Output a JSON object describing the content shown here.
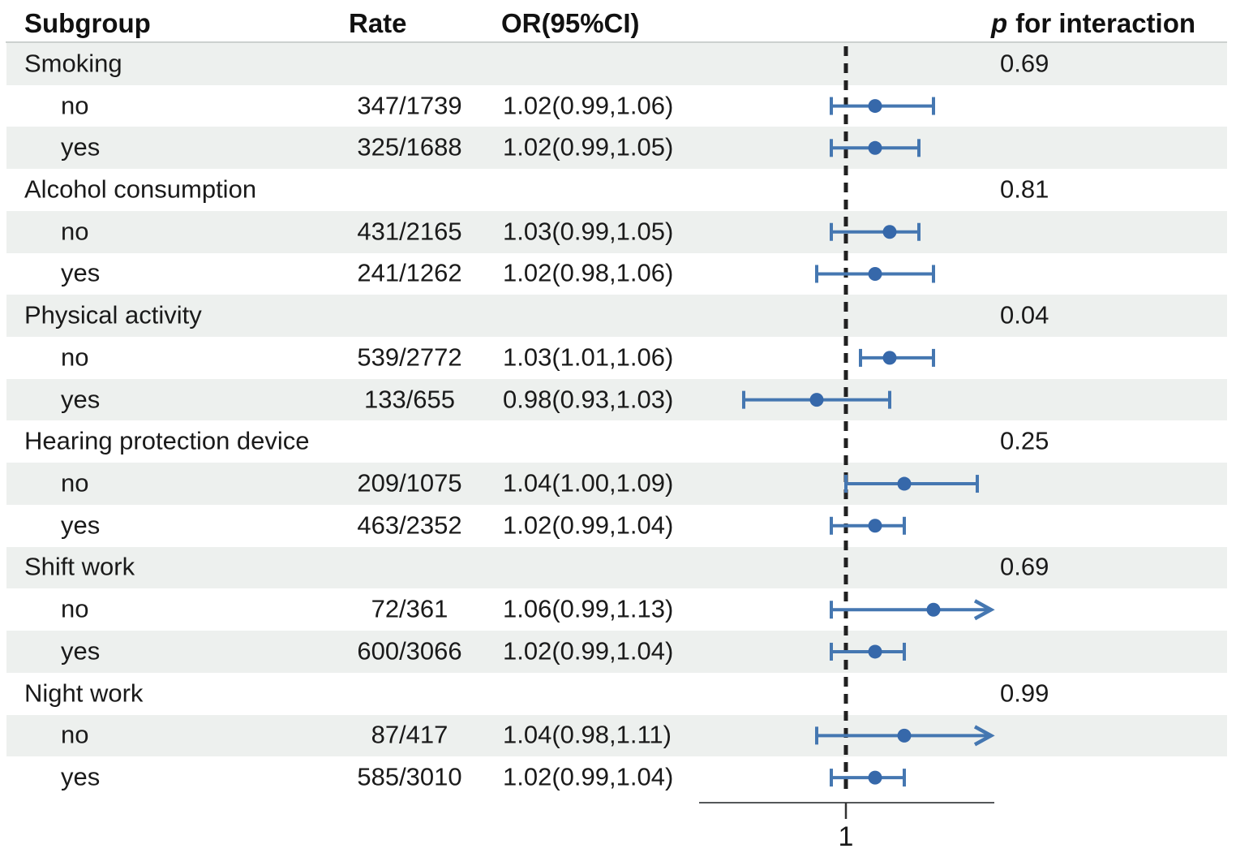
{
  "header": {
    "subgroup": "Subgroup",
    "rate": "Rate",
    "or_ci": "OR(95%CI)",
    "p_italic": "p",
    "p_rest": "for interaction"
  },
  "axis": {
    "ref_label": "1",
    "ref_value": 1.0,
    "xmin": 0.9,
    "xmax": 1.1
  },
  "colors": {
    "band": "#edf0ee",
    "ci_line": "#4577b1",
    "point": "#3668aa",
    "ref_dash": "#212121",
    "axis_line": "#55575a",
    "text": "#1a1a1a"
  },
  "chart_data": {
    "type": "forest",
    "title": "",
    "columns": [
      "Subgroup",
      "Rate",
      "OR(95%CI)",
      "p for interaction"
    ],
    "x_reference": 1.0,
    "x_range_approx": [
      0.9,
      1.1
    ],
    "rows": [
      {
        "kind": "group",
        "label": "Smoking",
        "p": "0.69"
      },
      {
        "kind": "level",
        "label": "no",
        "rate": "347/1739",
        "or_text": "1.02(0.99,1.06)",
        "or": 1.02,
        "lo": 0.99,
        "hi": 1.06,
        "hi_arrow": false
      },
      {
        "kind": "level",
        "label": "yes",
        "rate": "325/1688",
        "or_text": "1.02(0.99,1.05)",
        "or": 1.02,
        "lo": 0.99,
        "hi": 1.05,
        "hi_arrow": false
      },
      {
        "kind": "group",
        "label": "Alcohol consumption",
        "p": "0.81"
      },
      {
        "kind": "level",
        "label": "no",
        "rate": "431/2165",
        "or_text": "1.03(0.99,1.05)",
        "or": 1.03,
        "lo": 0.99,
        "hi": 1.05,
        "hi_arrow": false
      },
      {
        "kind": "level",
        "label": "yes",
        "rate": "241/1262",
        "or_text": "1.02(0.98,1.06)",
        "or": 1.02,
        "lo": 0.98,
        "hi": 1.06,
        "hi_arrow": false
      },
      {
        "kind": "group",
        "label": "Physical activity",
        "p": "0.04"
      },
      {
        "kind": "level",
        "label": "no",
        "rate": "539/2772",
        "or_text": "1.03(1.01,1.06)",
        "or": 1.03,
        "lo": 1.01,
        "hi": 1.06,
        "hi_arrow": false
      },
      {
        "kind": "level",
        "label": "yes",
        "rate": "133/655",
        "or_text": "0.98(0.93,1.03)",
        "or": 0.98,
        "lo": 0.93,
        "hi": 1.03,
        "hi_arrow": false
      },
      {
        "kind": "group",
        "label": "Hearing protection device",
        "p": "0.25"
      },
      {
        "kind": "level",
        "label": "no",
        "rate": "209/1075",
        "or_text": "1.04(1.00,1.09)",
        "or": 1.04,
        "lo": 1.0,
        "hi": 1.09,
        "hi_arrow": false
      },
      {
        "kind": "level",
        "label": "yes",
        "rate": "463/2352",
        "or_text": "1.02(0.99,1.04)",
        "or": 1.02,
        "lo": 0.99,
        "hi": 1.04,
        "hi_arrow": false
      },
      {
        "kind": "group",
        "label": "Shift work",
        "p": "0.69"
      },
      {
        "kind": "level",
        "label": "no",
        "rate": "72/361",
        "or_text": "1.06(0.99,1.13)",
        "or": 1.06,
        "lo": 0.99,
        "hi": 1.13,
        "hi_arrow": true
      },
      {
        "kind": "level",
        "label": "yes",
        "rate": "600/3066",
        "or_text": "1.02(0.99,1.04)",
        "or": 1.02,
        "lo": 0.99,
        "hi": 1.04,
        "hi_arrow": false
      },
      {
        "kind": "group",
        "label": "Night work",
        "p": "0.99"
      },
      {
        "kind": "level",
        "label": "no",
        "rate": "87/417",
        "or_text": "1.04(0.98,1.11)",
        "or": 1.04,
        "lo": 0.98,
        "hi": 1.11,
        "hi_arrow": true
      },
      {
        "kind": "level",
        "label": "yes",
        "rate": "585/3010",
        "or_text": "1.02(0.99,1.04)",
        "or": 1.02,
        "lo": 0.99,
        "hi": 1.04,
        "hi_arrow": false
      }
    ]
  }
}
